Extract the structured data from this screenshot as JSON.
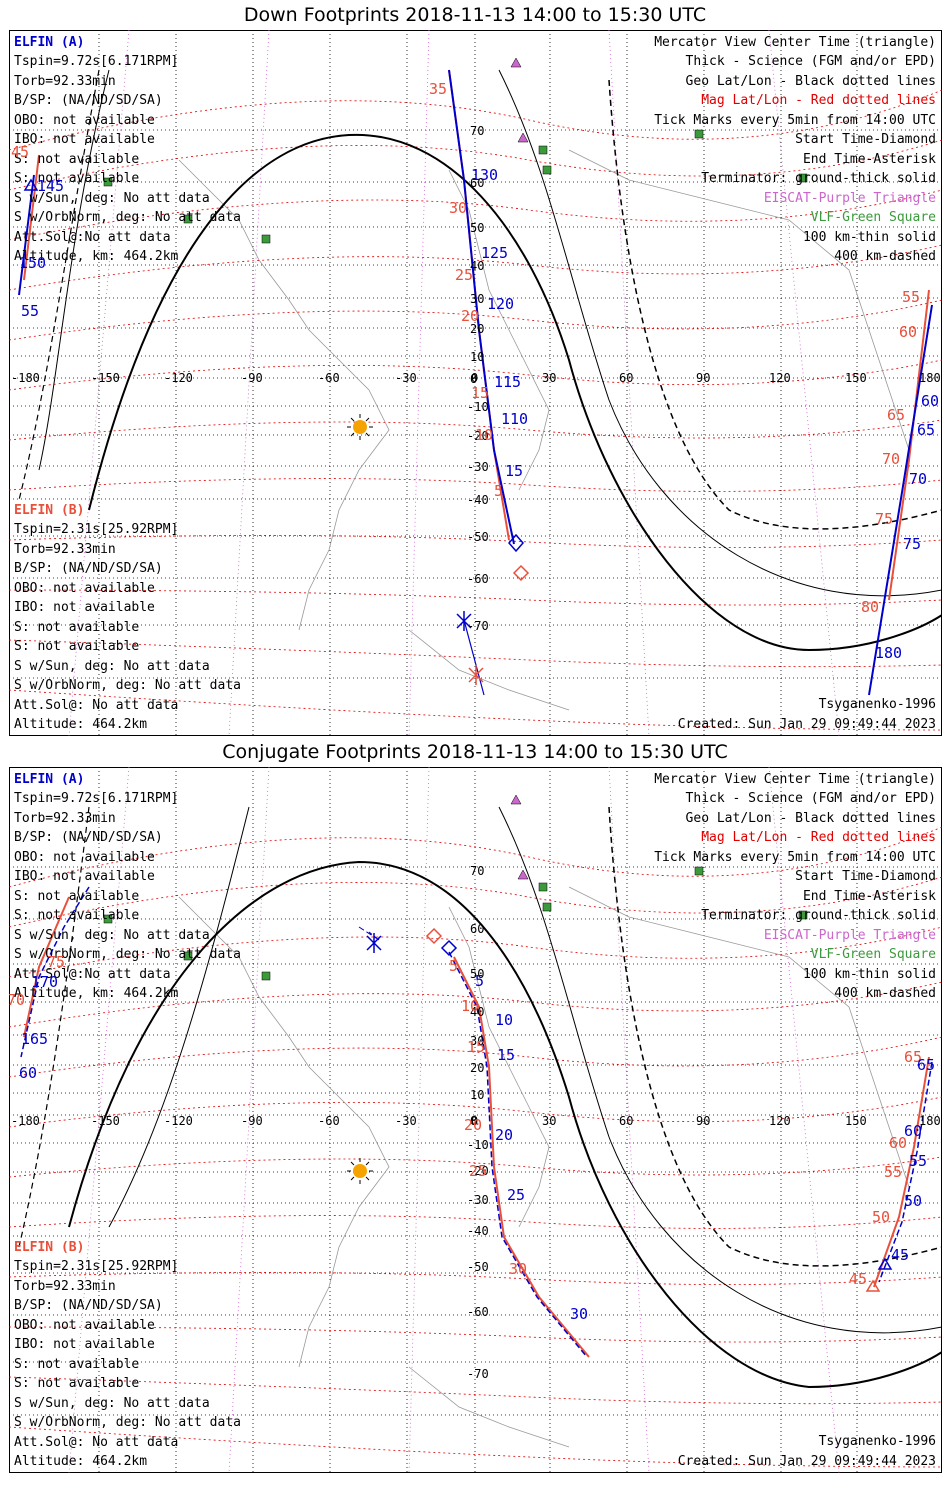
{
  "colors": {
    "elfin_a": "#0000cc",
    "elfin_b": "#e8503a",
    "mag_grid": "#e00000",
    "eiscat": "#cc66cc",
    "vlf": "#3c9a3c",
    "sun": "#f5a300"
  },
  "panels": [
    {
      "title": "Down Footprints 2018-11-13 14:00 to 15:30 UTC",
      "elfin_a": {
        "name": "ELFIN (A)",
        "lines": [
          "Tspin=9.72s[6.171RPM]",
          "Torb=92.33min",
          "B/SP: (NA/ND/SD/SA)",
          "OBO: not available",
          "IBO: not available",
          "S: not available",
          "S: not available",
          "S w/Sun, deg: No att data",
          "S w/OrbNorm, deg: No att data",
          "Att.Sol@:No att data",
          "Altitude, km: 464.2km"
        ]
      },
      "elfin_b": {
        "name": "ELFIN (B)",
        "lines": [
          "Tspin=2.31s[25.92RPM]",
          "Torb=92.33min",
          "B/SP: (NA/ND/SD/SA)",
          "OBO: not available",
          "IBO: not available",
          "S: not available",
          "S: not available",
          "S w/Sun, deg: No att data",
          "S w/OrbNorm, deg: No att data",
          "Att.Sol@: No att data",
          "Altitude: 464.2km"
        ]
      },
      "legend": [
        {
          "text": "Mercator View Center Time (triangle)",
          "color": "#000000"
        },
        {
          "text": "Thick - Science (FGM and/or EPD)",
          "color": "#000000"
        },
        {
          "text": "Geo Lat/Lon - Black dotted lines",
          "color": "#000000"
        },
        {
          "text": "Mag Lat/Lon - Red dotted lines",
          "color": "#e00000"
        },
        {
          "text": "Tick Marks every 5min from 14:00 UTC",
          "color": "#000000"
        },
        {
          "text": "Start Time-Diamond",
          "color": "#000000"
        },
        {
          "text": "End Time-Asterisk",
          "color": "#000000"
        },
        {
          "text": "Terminator: ground-thick solid",
          "color": "#000000"
        },
        {
          "text": "EISCAT-Purple Triangle",
          "color": "#cc66cc"
        },
        {
          "text": "VLF-Green Square",
          "color": "#3c9a3c"
        },
        {
          "text": "100 km-thin solid",
          "color": "#000000"
        },
        {
          "text": "400 km-dashed",
          "color": "#000000"
        }
      ],
      "model": "Tsyganenko-1996",
      "created": "Created: Sun Jan 29 09:49:44 2023",
      "lon_labels": [
        "-180",
        "-150",
        "-120",
        "-90",
        "-60",
        "-30",
        "0",
        "30",
        "60",
        "90",
        "120",
        "150",
        "180"
      ],
      "lat_labels": [
        "70",
        "60",
        "50",
        "40",
        "30",
        "20",
        "10",
        "0",
        "-10",
        "-20",
        "-30",
        "-40",
        "-50",
        "-60",
        "-70"
      ],
      "mag_labels": [
        "35",
        "30",
        "25",
        "20",
        "15",
        "10",
        "5",
        "45",
        "55",
        "60",
        "65",
        "70",
        "75",
        "80"
      ],
      "tick_labels_a": [
        "130",
        "125",
        "120",
        "115",
        "110",
        "15",
        "145",
        "150",
        "55",
        "60",
        "65",
        "70",
        "75",
        "180"
      ]
    },
    {
      "title": "Conjugate Footprints 2018-11-13 14:00 to 15:30 UTC",
      "elfin_a": {
        "name": "ELFIN (A)",
        "lines": [
          "Tspin=9.72s[6.171RPM]",
          "Torb=92.33min",
          "B/SP: (NA/ND/SD/SA)",
          "OBO: not available",
          "IBO: not available",
          "S: not available",
          "S: not available",
          "S w/Sun, deg: No att data",
          "S w/OrbNorm, deg: No att data",
          "Att.Sol@:No att data",
          "Altitude, km: 464.2km"
        ]
      },
      "elfin_b": {
        "name": "ELFIN (B)",
        "lines": [
          "Tspin=2.31s[25.92RPM]",
          "Torb=92.33min",
          "B/SP: (NA/ND/SD/SA)",
          "OBO: not available",
          "IBO: not available",
          "S: not available",
          "S: not available",
          "S w/Sun, deg: No att data",
          "S w/OrbNorm, deg: No att data",
          "Att.Sol@: No att data",
          "Altitude: 464.2km"
        ]
      },
      "legend": [
        {
          "text": "Mercator View Center Time (triangle)",
          "color": "#000000"
        },
        {
          "text": "Thick - Science (FGM and/or EPD)",
          "color": "#000000"
        },
        {
          "text": "Geo Lat/Lon - Black dotted lines",
          "color": "#000000"
        },
        {
          "text": "Mag Lat/Lon - Red dotted lines",
          "color": "#e00000"
        },
        {
          "text": "Tick Marks every 5min from 14:00 UTC",
          "color": "#000000"
        },
        {
          "text": "Start Time-Diamond",
          "color": "#000000"
        },
        {
          "text": "End Time-Asterisk",
          "color": "#000000"
        },
        {
          "text": "Terminator: ground-thick solid",
          "color": "#000000"
        },
        {
          "text": "EISCAT-Purple Triangle",
          "color": "#cc66cc"
        },
        {
          "text": "VLF-Green Square",
          "color": "#3c9a3c"
        },
        {
          "text": "100 km-thin solid",
          "color": "#000000"
        },
        {
          "text": "400 km-dashed",
          "color": "#000000"
        }
      ],
      "model": "Tsyganenko-1996",
      "created": "Created: Sun Jan 29 09:49:44 2023",
      "lon_labels": [
        "-180",
        "-150",
        "-120",
        "-90",
        "-60",
        "-30",
        "0",
        "30",
        "60",
        "90",
        "120",
        "150",
        "180"
      ],
      "lat_labels": [
        "70",
        "60",
        "50",
        "40",
        "30",
        "20",
        "10",
        "0",
        "-10",
        "-20",
        "-30",
        "-40",
        "-50",
        "-60",
        "-70"
      ],
      "mag_labels": [
        "5",
        "10",
        "15",
        "20",
        "25",
        "30",
        "65",
        "60",
        "55",
        "50",
        "45",
        "70",
        "75"
      ],
      "tick_labels_a": [
        "5",
        "10",
        "15",
        "20",
        "25",
        "30",
        "65",
        "60",
        "55",
        "50",
        "45",
        "170",
        "165",
        "60"
      ]
    }
  ]
}
